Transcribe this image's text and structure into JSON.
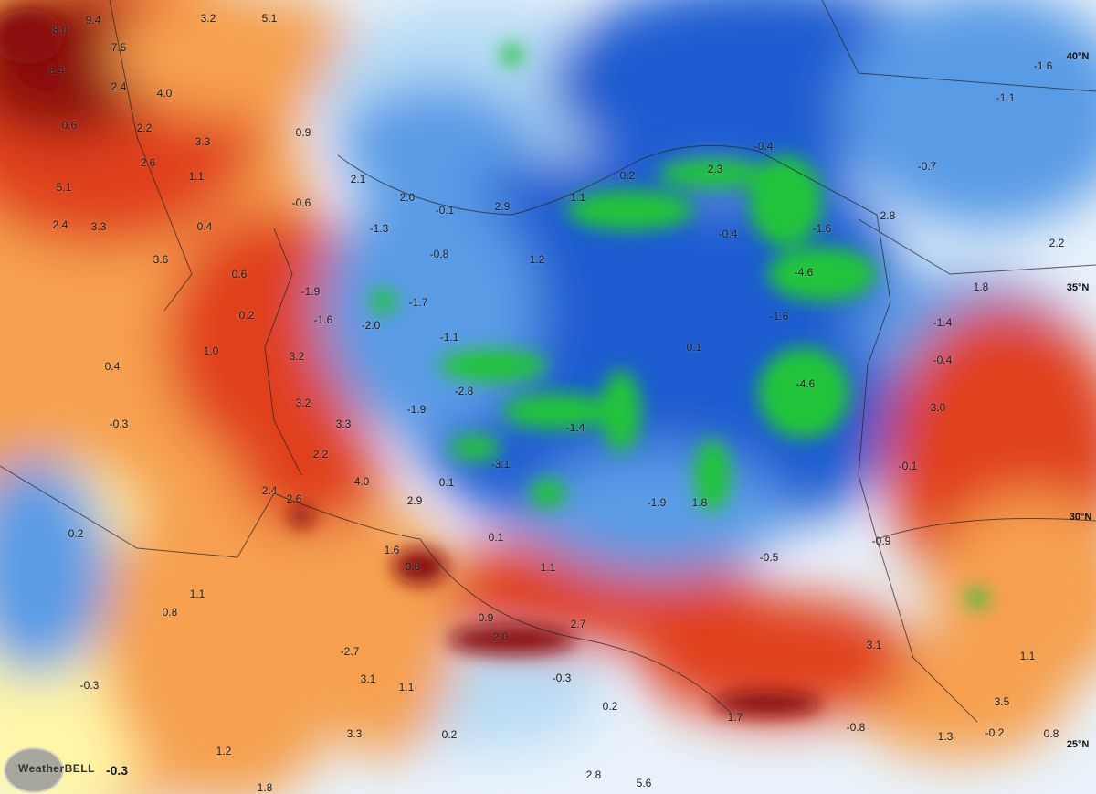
{
  "map": {
    "type": "temperature anomaly map",
    "colors": {
      "warm_strong": "#8b0a0a",
      "warm": "#e0401a",
      "mild": "#f6a050",
      "neutral": "#fff6a8",
      "cool": "#5a9be6",
      "cold": "#1f5bd0",
      "very_cold": "#22c43a",
      "water": "#b8dcf5"
    },
    "latitude_labels": [
      "40°N",
      "35°N",
      "30°N",
      "25°N"
    ],
    "watermark": {
      "brand": "WeatherBELL",
      "value": "-0.3"
    },
    "values": [
      "9.4",
      "8.0",
      "7.5",
      "8.4",
      "2.4",
      "4.0",
      "3.2",
      "5.1",
      "2.2",
      "3.3",
      "0.9",
      "0.6",
      "2.6",
      "1.1",
      "5.1",
      "2.1",
      "2.0",
      "-0.1",
      "2.9",
      "1.1",
      "0.2",
      "2.3",
      "-0.4",
      "-0.7",
      "-1.1",
      "-1.6",
      "2.4",
      "3.3",
      "0.4",
      "-0.6",
      "-1.3",
      "-0.8",
      "1.2",
      "-0.4",
      "-1.6",
      "2.8",
      "2.2",
      "3.6",
      "0.6",
      "-1.9",
      "-1.7",
      "-4.6",
      "1.8",
      "0.2",
      "-1.6",
      "-2.0",
      "-1.1",
      "-1.6",
      "-1.4",
      "0.1",
      "1.0",
      "3.2",
      "0.4",
      "-0.4",
      "-2.8",
      "-4.6",
      "3.2",
      "-1.9",
      "-1.4",
      "3.3",
      "-0.3",
      "3.0",
      "2.2",
      "-3.1",
      "4.0",
      "0.1",
      "-0.1",
      "2.4",
      "2.6",
      "2.9",
      "-1.9",
      "1.8",
      "0.2",
      "0.1",
      "-0.9",
      "1.6",
      "0.8",
      "-0.5",
      "1.1",
      "1.1",
      "0.8",
      "2.7",
      "0.9",
      "2.0",
      "3.1",
      "-2.7",
      "1.1",
      "-0.3",
      "3.1",
      "1.1",
      "-0.3",
      "3.5",
      "0.2",
      "0.2",
      "1.7",
      "-0.8",
      "3.3",
      "1.3",
      "-0.2",
      "0.8",
      "1.2",
      "1.8",
      "2.8",
      "5.6"
    ]
  }
}
